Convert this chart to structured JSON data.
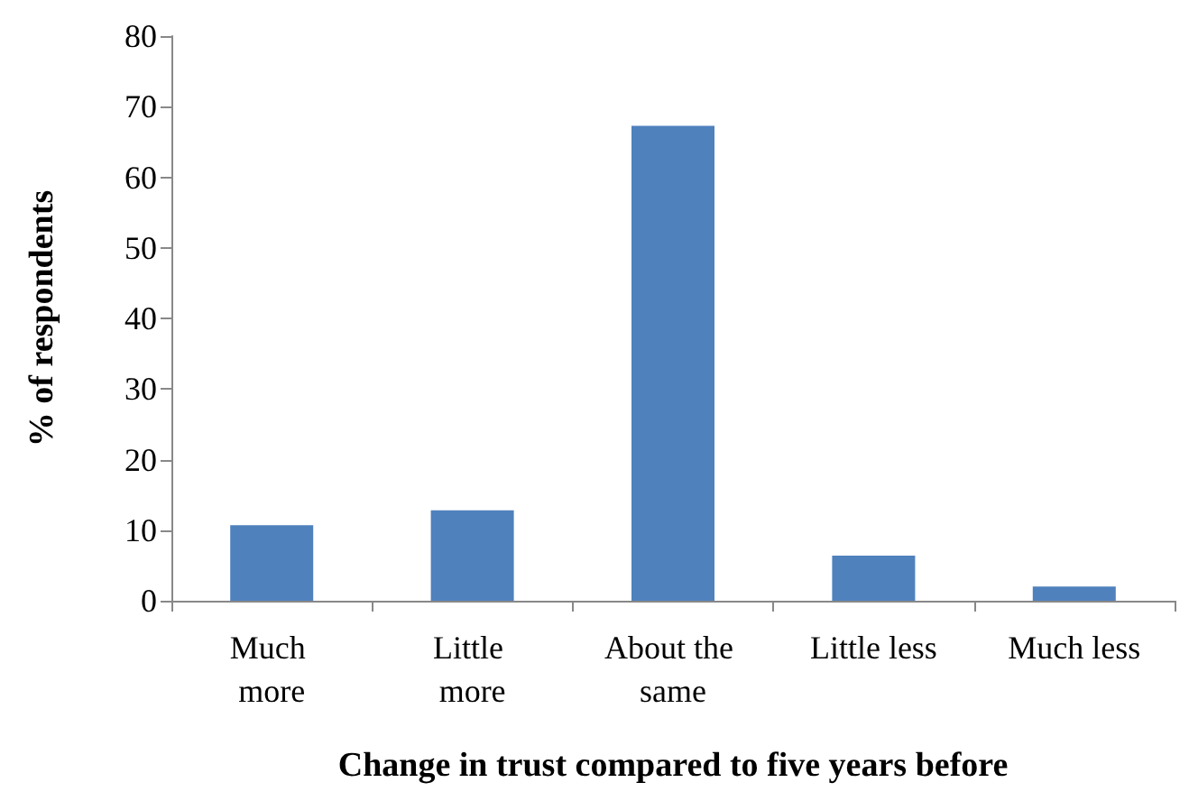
{
  "chart_data": {
    "type": "bar",
    "xlabel": "Change in trust compared to five years before",
    "ylabel": "% of respondents",
    "categories": [
      "Much more",
      "Little more",
      "About the same",
      "Little less",
      "Much less"
    ],
    "values": [
      10.7,
      12.8,
      67.3,
      6.4,
      2.0
    ],
    "color": "#4f81bd",
    "ylim": [
      0,
      80
    ],
    "yticks": [
      0,
      10,
      20,
      30,
      40,
      50,
      60,
      70,
      80
    ],
    "grid": false
  }
}
